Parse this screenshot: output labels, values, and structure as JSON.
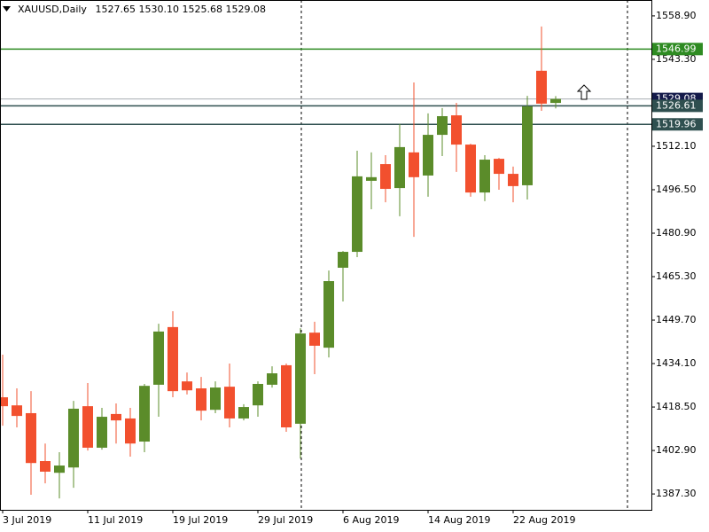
{
  "chart_data": {
    "type": "candlestick",
    "symbol": "XAUUSD,Daily",
    "ohlc_labels": [
      "1527.65",
      "1530.10",
      "1525.68",
      "1529.08"
    ],
    "categories": [
      "3 Jul 2019",
      null,
      null,
      null,
      null,
      null,
      "11 Jul 2019",
      null,
      null,
      null,
      null,
      null,
      "19 Jul 2019",
      null,
      null,
      null,
      null,
      null,
      "29 Jul 2019",
      null,
      null,
      null,
      null,
      null,
      "6 Aug 2019",
      null,
      null,
      null,
      null,
      null,
      "14 Aug 2019",
      null,
      null,
      null,
      null,
      null,
      "22 Aug 2019",
      null,
      null,
      null
    ],
    "open": [
      1422.0,
      1419.1,
      1416.3,
      1399.1,
      1394.9,
      1396.8,
      1418.8,
      1403.9,
      1416.0,
      1414.4,
      1406.1,
      1426.5,
      1447.2,
      1427.7,
      1425.2,
      1417.5,
      1425.8,
      1414.4,
      1419.1,
      1426.5,
      1433.5,
      1412.5,
      1445.2,
      1439.8,
      1468.5,
      1474.2,
      1499.7,
      1505.7,
      1497.1,
      1509.9,
      1501.6,
      1516.2,
      1523.2,
      1512.7,
      1495.5,
      1507.6,
      1502.2,
      1498.1,
      1539.2,
      1527.65
    ],
    "high": [
      1437.3,
      1425.2,
      1424.2,
      1405.4,
      1402.3,
      1420.7,
      1427.1,
      1418.2,
      1419.8,
      1418.2,
      1426.8,
      1448.4,
      1452.9,
      1430.9,
      1429.3,
      1427.7,
      1434.1,
      1419.5,
      1427.7,
      1433.1,
      1434.1,
      1446.8,
      1449.1,
      1467.5,
      1474.5,
      1510.5,
      1509.9,
      1508.9,
      1520.1,
      1535.0,
      1523.9,
      1525.8,
      1527.7,
      1513.0,
      1508.9,
      1507.9,
      1504.8,
      1530.2,
      1555.1,
      1530.1
    ],
    "low": [
      1411.8,
      1411.2,
      1387.0,
      1391.1,
      1385.7,
      1389.5,
      1402.9,
      1403.2,
      1405.4,
      1400.7,
      1402.3,
      1415.0,
      1422.0,
      1423.0,
      1413.7,
      1416.3,
      1411.2,
      1413.7,
      1415.0,
      1425.5,
      1409.6,
      1400.0,
      1430.3,
      1436.3,
      1456.4,
      1472.3,
      1489.5,
      1492.0,
      1487.0,
      1479.6,
      1494.0,
      1508.6,
      1502.9,
      1494.0,
      1492.4,
      1496.5,
      1492.0,
      1493.0,
      1524.8,
      1525.68
    ],
    "close": [
      1418.8,
      1415.3,
      1398.4,
      1395.3,
      1397.5,
      1417.9,
      1403.9,
      1415.0,
      1413.7,
      1405.4,
      1426.1,
      1445.6,
      1424.2,
      1424.5,
      1417.2,
      1425.5,
      1414.4,
      1418.5,
      1426.8,
      1430.6,
      1411.2,
      1444.9,
      1440.5,
      1463.7,
      1474.2,
      1501.3,
      1501.0,
      1496.8,
      1511.8,
      1501.0,
      1516.2,
      1522.9,
      1512.7,
      1495.5,
      1507.3,
      1502.2,
      1497.8,
      1526.4,
      1527.4,
      1529.08
    ],
    "up_color": "#5b8c2a",
    "down_color": "#f2502e",
    "ylim": [
      1381.6,
      1564.6
    ],
    "yticks": [
      {
        "value": 1387.3,
        "label": "1387.30"
      },
      {
        "value": 1402.9,
        "label": "1402.90"
      },
      {
        "value": 1418.5,
        "label": "1418.50"
      },
      {
        "value": 1434.1,
        "label": "1434.10"
      },
      {
        "value": 1449.7,
        "label": "1449.70"
      },
      {
        "value": 1465.3,
        "label": "1465.30"
      },
      {
        "value": 1480.9,
        "label": "1480.90"
      },
      {
        "value": 1496.5,
        "label": "1496.50"
      },
      {
        "value": 1512.1,
        "label": "1512.10"
      },
      {
        "value": 1543.3,
        "label": "1543.30"
      },
      {
        "value": 1558.9,
        "label": "1558.90"
      }
    ],
    "bid": {
      "value": 1529.08,
      "color": "#a7adb3",
      "label_color": "#141a4a"
    },
    "levels": [
      {
        "value": 1546.99,
        "color": "#2e8b22"
      },
      {
        "value": 1526.61,
        "color": "#2f4f4f"
      },
      {
        "value": 1519.96,
        "color": "#2f4f4f"
      }
    ]
  }
}
